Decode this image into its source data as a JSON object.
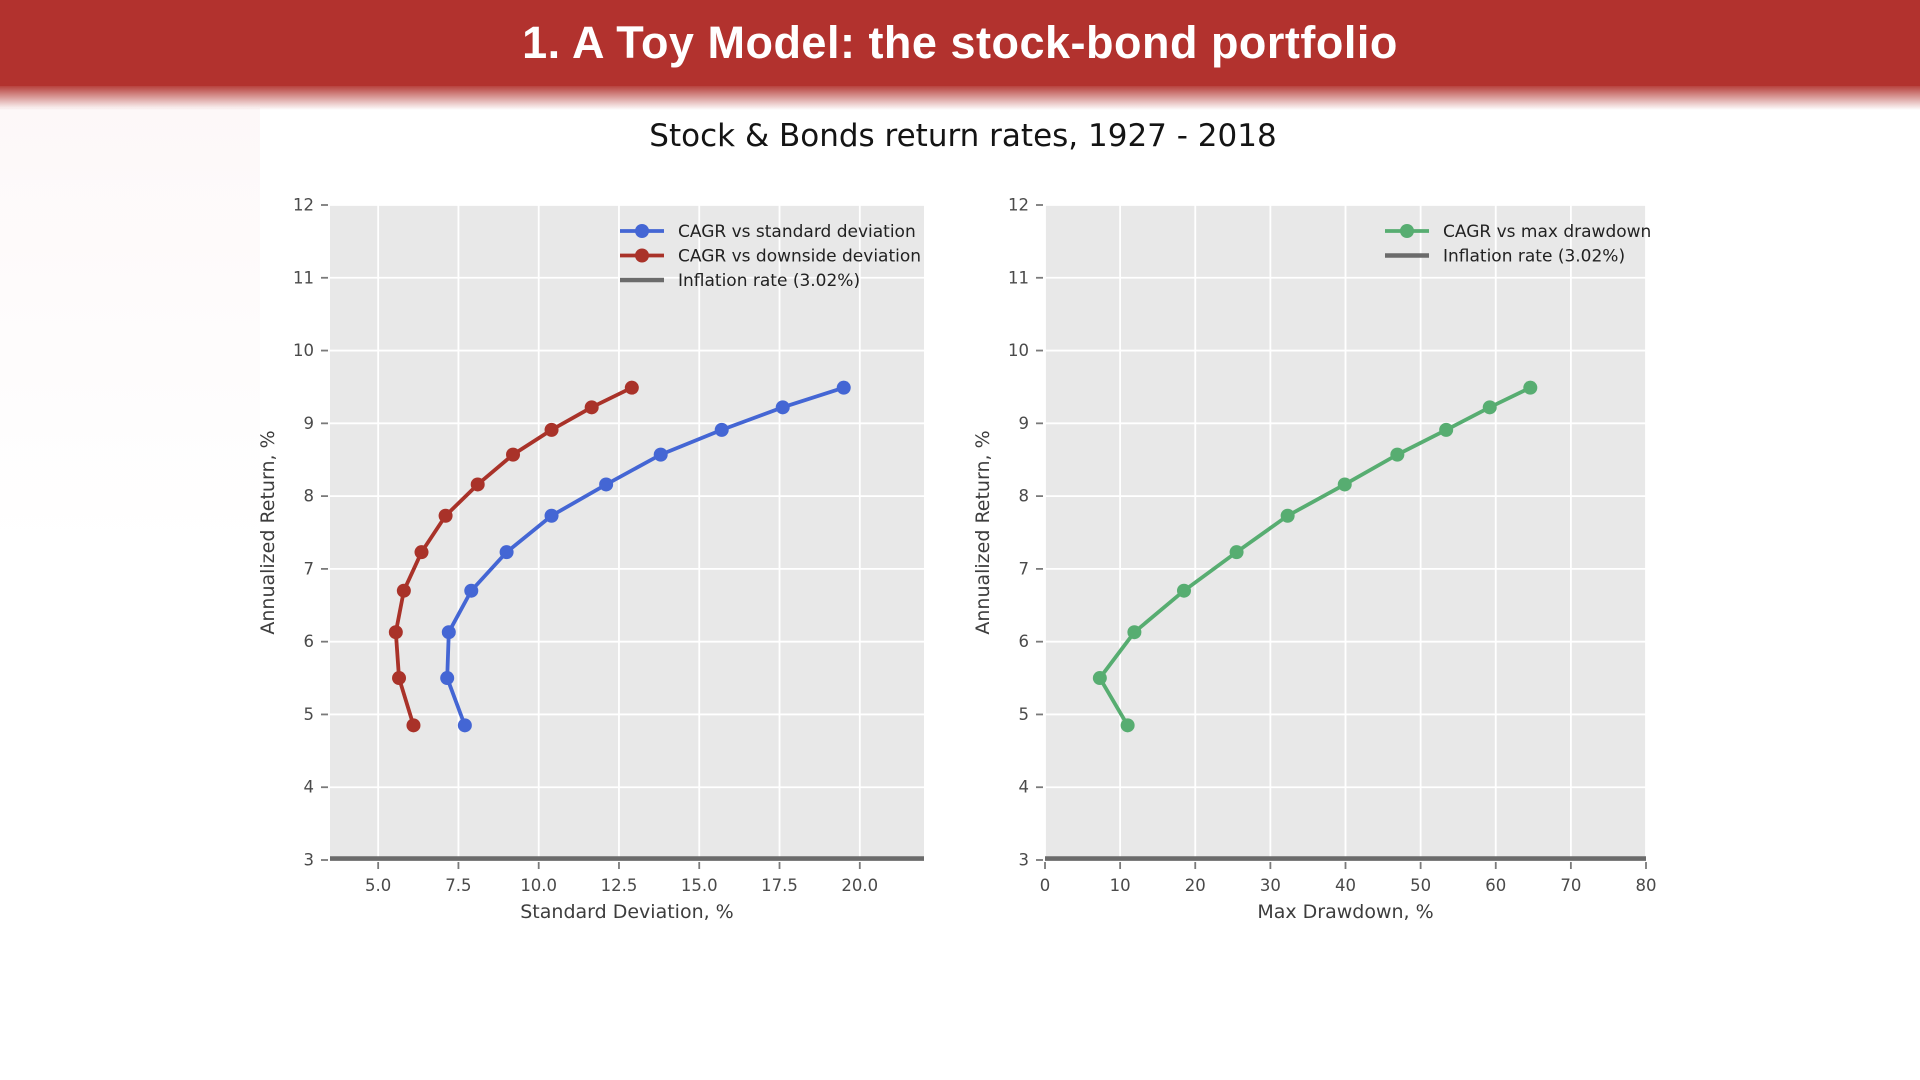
{
  "slide": {
    "title": "1. A Toy Model: the stock-bond portfolio",
    "banner_color": "#b2322e"
  },
  "figure": {
    "title": "Stock & Bonds return rates, 1927 - 2018"
  },
  "chart_data": [
    {
      "type": "line",
      "title": "Stock & Bonds return rates, 1927 - 2018",
      "xlabel": "Standard Deviation, %",
      "ylabel": "Annualized Return, %",
      "xlim": [
        3.5,
        22
      ],
      "ylim": [
        3,
        12
      ],
      "xticks": [
        5.0,
        7.5,
        10.0,
        12.5,
        15.0,
        17.5,
        20.0
      ],
      "xtick_labels": [
        "5.0",
        "7.5",
        "10.0",
        "12.5",
        "15.0",
        "17.5",
        "20.0"
      ],
      "yticks": [
        12,
        11,
        10,
        9,
        8,
        7,
        6,
        5,
        4,
        3
      ],
      "ytick_labels": [
        "12",
        "11",
        "10",
        "9",
        "8",
        "7",
        "6",
        "5",
        "4",
        "3"
      ],
      "grid": true,
      "legend_position": "upper right",
      "plot_bg": "#e8e8e8",
      "series": [
        {
          "name": "CAGR vs standard deviation",
          "color": "#4466d4",
          "x": [
            7.7,
            7.15,
            7.2,
            7.9,
            9.0,
            10.4,
            12.1,
            13.8,
            15.7,
            17.6,
            19.5
          ],
          "y": [
            4.85,
            5.5,
            6.13,
            6.7,
            7.23,
            7.73,
            8.16,
            8.57,
            8.91,
            9.22,
            9.49
          ]
        },
        {
          "name": "CAGR vs downside deviation",
          "color": "#a93229",
          "x": [
            6.1,
            5.65,
            5.55,
            5.8,
            6.35,
            7.1,
            8.1,
            9.2,
            10.4,
            11.65,
            12.9
          ],
          "y": [
            4.85,
            5.5,
            6.13,
            6.7,
            7.23,
            7.73,
            8.16,
            8.57,
            8.91,
            9.22,
            9.49
          ]
        },
        {
          "name": "Inflation rate (3.02%)",
          "color": "#6b6b6b",
          "style": "hline",
          "value": 3.02
        }
      ]
    },
    {
      "type": "line",
      "title": "Stock & Bonds return rates, 1927 - 2018",
      "xlabel": "Max Drawdown, %",
      "ylabel": "Annualized Return, %",
      "xlim": [
        0,
        80
      ],
      "ylim": [
        3,
        12
      ],
      "xticks": [
        0,
        10,
        20,
        30,
        40,
        50,
        60,
        70,
        80
      ],
      "xtick_labels": [
        "0",
        "10",
        "20",
        "30",
        "40",
        "50",
        "60",
        "70",
        "80"
      ],
      "yticks": [
        12,
        11,
        10,
        9,
        8,
        7,
        6,
        5,
        4,
        3
      ],
      "ytick_labels": [
        "12",
        "11",
        "10",
        "9",
        "8",
        "7",
        "6",
        "5",
        "4",
        "3"
      ],
      "grid": true,
      "legend_position": "upper right",
      "plot_bg": "#e8e8e8",
      "series": [
        {
          "name": "CAGR vs max drawdown",
          "color": "#57ad71",
          "x": [
            11.0,
            7.3,
            11.9,
            18.5,
            25.5,
            32.3,
            39.9,
            46.9,
            53.4,
            59.2,
            64.6
          ],
          "y": [
            4.85,
            5.5,
            6.13,
            6.7,
            7.23,
            7.73,
            8.16,
            8.57,
            8.91,
            9.22,
            9.49
          ]
        },
        {
          "name": "Inflation rate (3.02%)",
          "color": "#6b6b6b",
          "style": "hline",
          "value": 3.02
        }
      ]
    }
  ]
}
